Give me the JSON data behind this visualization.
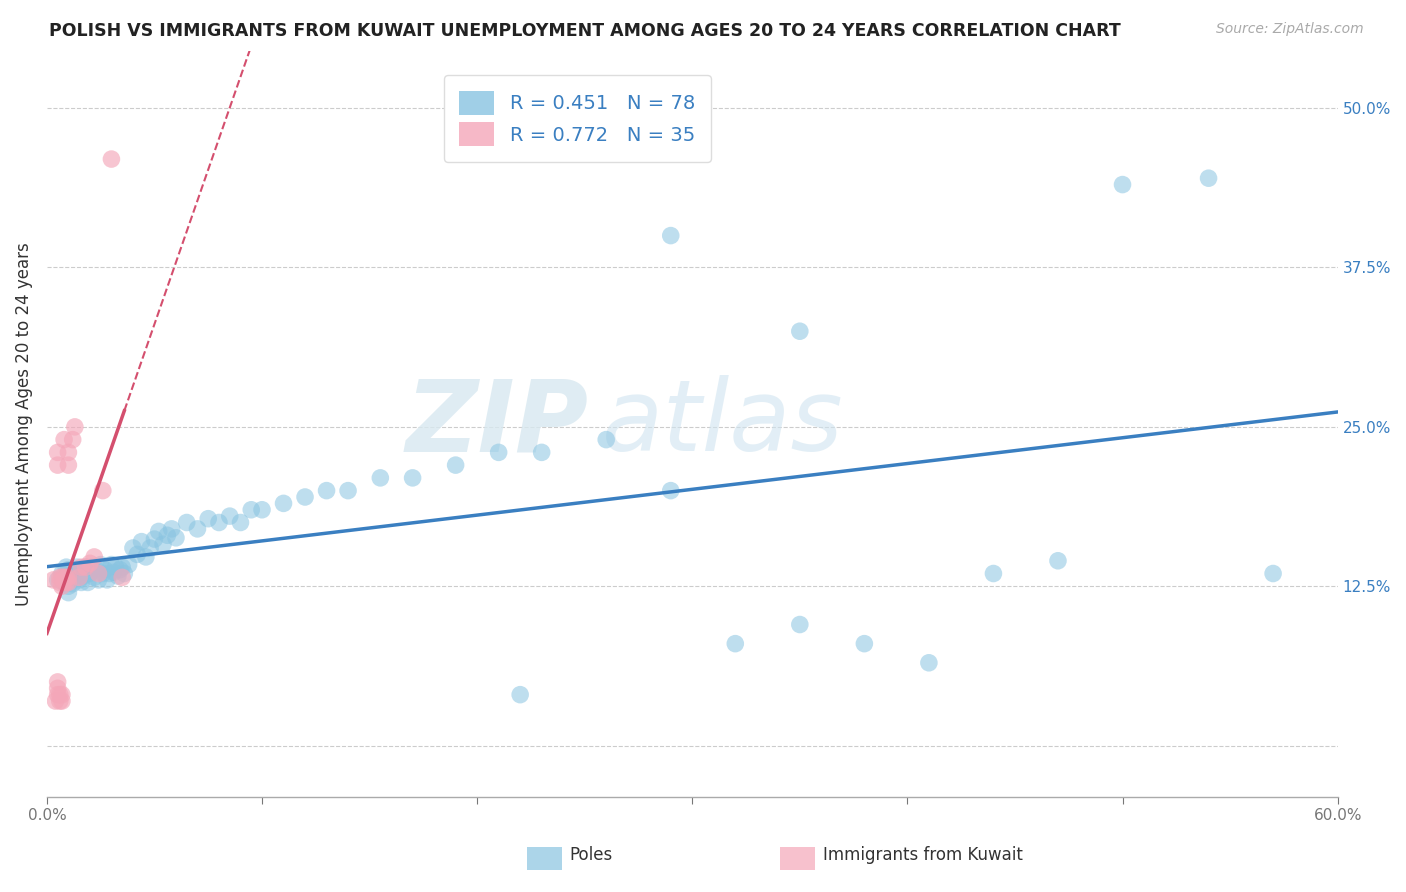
{
  "title": "POLISH VS IMMIGRANTS FROM KUWAIT UNEMPLOYMENT AMONG AGES 20 TO 24 YEARS CORRELATION CHART",
  "source": "Source: ZipAtlas.com",
  "ylabel": "Unemployment Among Ages 20 to 24 years",
  "xlim": [
    0.0,
    0.6
  ],
  "ylim": [
    -0.04,
    0.545
  ],
  "xticks": [
    0.0,
    0.1,
    0.2,
    0.3,
    0.4,
    0.5,
    0.6
  ],
  "xticklabels": [
    "0.0%",
    "",
    "",
    "",
    "",
    "",
    "60.0%"
  ],
  "yticks": [
    0.125,
    0.25,
    0.375,
    0.5
  ],
  "yticklabels": [
    "12.5%",
    "25.0%",
    "37.5%",
    "50.0%"
  ],
  "legend_R": [
    0.451,
    0.772
  ],
  "legend_N": [
    78,
    35
  ],
  "legend_labels_bottom": [
    "Poles",
    "Immigrants from Kuwait"
  ],
  "blue_color": "#89c4e1",
  "pink_color": "#f4a7b9",
  "blue_line_color": "#3a7fc1",
  "pink_line_color": "#d44f6e",
  "watermark_zip": "ZIP",
  "watermark_atlas": "atlas",
  "blue_scatter_x": [
    0.005,
    0.007,
    0.008,
    0.009,
    0.01,
    0.01,
    0.01,
    0.01,
    0.012,
    0.012,
    0.013,
    0.014,
    0.015,
    0.015,
    0.016,
    0.017,
    0.018,
    0.019,
    0.02,
    0.021,
    0.022,
    0.023,
    0.024,
    0.025,
    0.026,
    0.027,
    0.028,
    0.029,
    0.03,
    0.031,
    0.032,
    0.033,
    0.034,
    0.035,
    0.036,
    0.038,
    0.04,
    0.042,
    0.044,
    0.046,
    0.048,
    0.05,
    0.052,
    0.054,
    0.056,
    0.058,
    0.06,
    0.065,
    0.07,
    0.075,
    0.08,
    0.085,
    0.09,
    0.095,
    0.1,
    0.11,
    0.12,
    0.13,
    0.14,
    0.155,
    0.17,
    0.19,
    0.21,
    0.23,
    0.26,
    0.29,
    0.32,
    0.35,
    0.38,
    0.41,
    0.44,
    0.47,
    0.5,
    0.54,
    0.57,
    0.35,
    0.29,
    0.22
  ],
  "blue_scatter_y": [
    0.13,
    0.135,
    0.128,
    0.14,
    0.133,
    0.125,
    0.12,
    0.138,
    0.132,
    0.127,
    0.135,
    0.14,
    0.13,
    0.135,
    0.128,
    0.133,
    0.14,
    0.128,
    0.135,
    0.14,
    0.132,
    0.138,
    0.13,
    0.142,
    0.135,
    0.138,
    0.13,
    0.135,
    0.142,
    0.136,
    0.14,
    0.133,
    0.138,
    0.14,
    0.135,
    0.142,
    0.155,
    0.15,
    0.16,
    0.148,
    0.155,
    0.162,
    0.168,
    0.158,
    0.165,
    0.17,
    0.163,
    0.175,
    0.17,
    0.178,
    0.175,
    0.18,
    0.175,
    0.185,
    0.185,
    0.19,
    0.195,
    0.2,
    0.2,
    0.21,
    0.21,
    0.22,
    0.23,
    0.23,
    0.24,
    0.2,
    0.08,
    0.095,
    0.08,
    0.065,
    0.135,
    0.145,
    0.44,
    0.445,
    0.135,
    0.325,
    0.4,
    0.04
  ],
  "pink_scatter_x": [
    0.003,
    0.004,
    0.005,
    0.005,
    0.005,
    0.005,
    0.005,
    0.006,
    0.006,
    0.006,
    0.006,
    0.007,
    0.007,
    0.007,
    0.007,
    0.008,
    0.008,
    0.008,
    0.009,
    0.009,
    0.01,
    0.01,
    0.01,
    0.01,
    0.012,
    0.013,
    0.015,
    0.016,
    0.018,
    0.02,
    0.022,
    0.024,
    0.026,
    0.03,
    0.035
  ],
  "pink_scatter_y": [
    0.13,
    0.035,
    0.04,
    0.045,
    0.05,
    0.22,
    0.23,
    0.035,
    0.04,
    0.128,
    0.132,
    0.035,
    0.04,
    0.125,
    0.132,
    0.128,
    0.132,
    0.24,
    0.128,
    0.132,
    0.128,
    0.132,
    0.22,
    0.23,
    0.24,
    0.25,
    0.132,
    0.14,
    0.14,
    0.143,
    0.148,
    0.135,
    0.2,
    0.46,
    0.132
  ],
  "pink_line_x": [
    0.0,
    0.08
  ],
  "pink_line_y_start": 0.08,
  "pink_line_y_end": 0.48
}
